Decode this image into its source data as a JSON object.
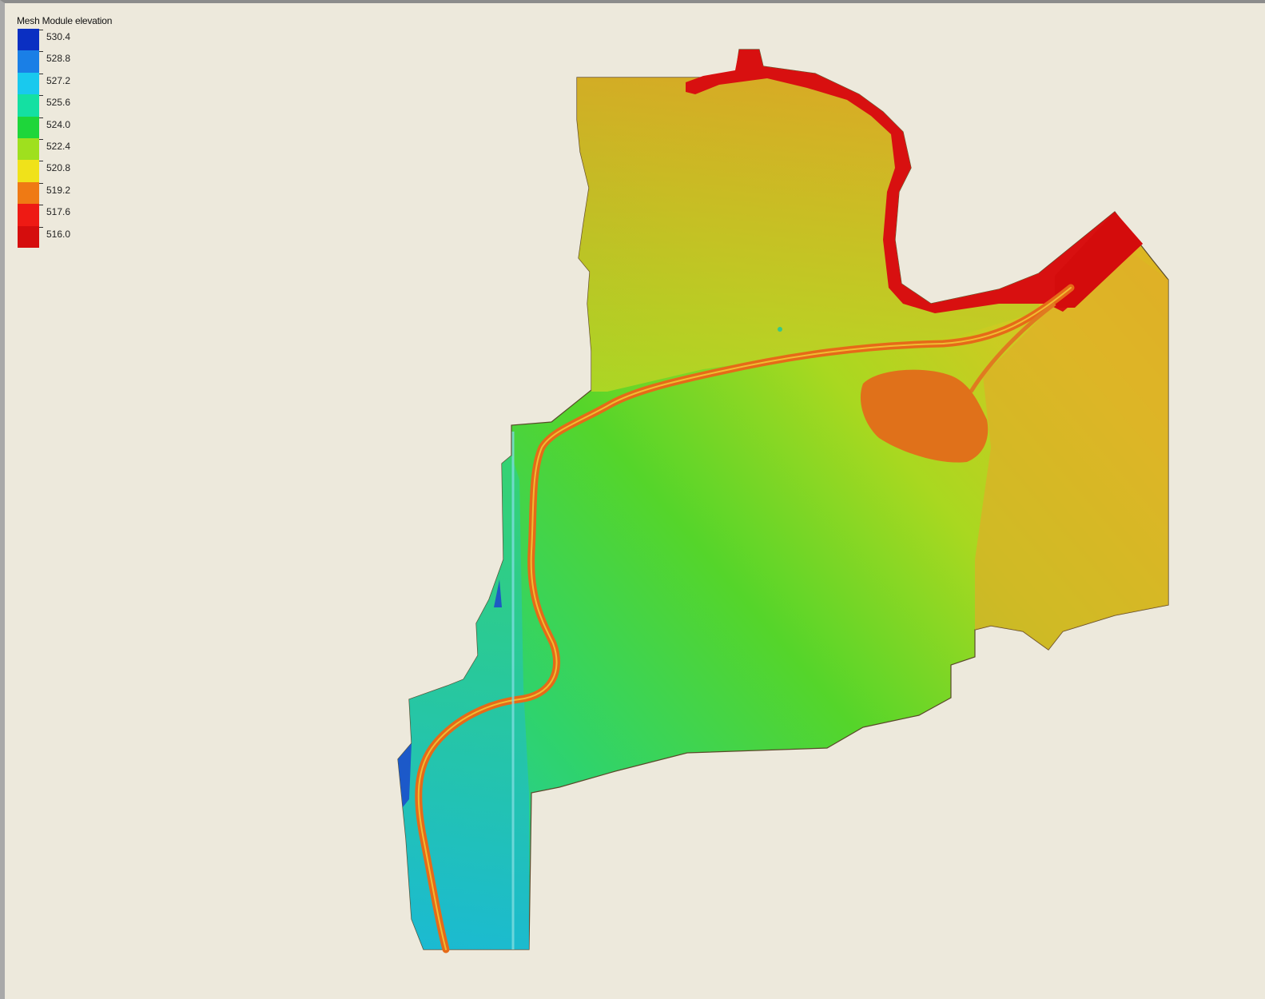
{
  "legend": {
    "title": "Mesh Module elevation",
    "entries": [
      {
        "label": "530.4",
        "color": "#0a2fc2"
      },
      {
        "label": "528.8",
        "color": "#1a7fe6"
      },
      {
        "label": "527.2",
        "color": "#19c9ee"
      },
      {
        "label": "525.6",
        "color": "#14e0a2"
      },
      {
        "label": "524.0",
        "color": "#1ed63a"
      },
      {
        "label": "522.4",
        "color": "#9fe01e"
      },
      {
        "label": "520.8",
        "color": "#f0e21a"
      },
      {
        "label": "519.2",
        "color": "#ef7a14"
      },
      {
        "label": "517.6",
        "color": "#ee1a14"
      },
      {
        "label": "516.0",
        "color": "#d50d0d"
      }
    ]
  },
  "colors": {
    "background": "#ede9dc",
    "river": "#e8631a",
    "river_mouth": "#d81010",
    "pond": "#e0711a",
    "mesh_outline": "#5a4a2a"
  }
}
